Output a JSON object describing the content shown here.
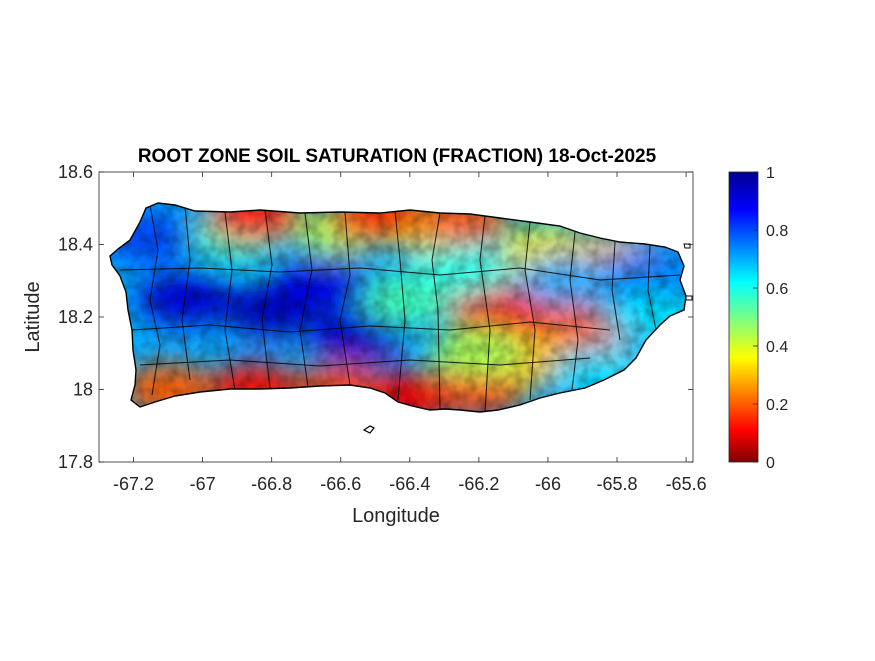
{
  "figure": {
    "title": "ROOT ZONE SOIL SATURATION (FRACTION) 18-Oct-2025",
    "xlabel": "Longitude",
    "ylabel": "Latitude"
  },
  "map": {
    "region": "Puerto Rico",
    "variable": "root zone soil saturation fraction",
    "xlim": [
      -67.3,
      -65.58
    ],
    "ylim": [
      17.8,
      18.6
    ],
    "xticks": [
      "-67.2",
      "-67",
      "-66.8",
      "-66.6",
      "-66.4",
      "-66.2",
      "-66",
      "-65.8",
      "-65.6"
    ],
    "yticks": [
      "18.6",
      "18.4",
      "18.2",
      "18",
      "17.8"
    ],
    "colormap": "jet",
    "clim": [
      0,
      1
    ],
    "colorbar_ticks": [
      "1",
      "0.8",
      "0.6",
      "0.4",
      "0.2",
      "0"
    ],
    "colors": {
      "low": "#800000",
      "mid": "#ffff00",
      "high": "#00008f",
      "outline": "#000000"
    },
    "fields": [
      {
        "lon": -67.05,
        "lat": 18.25,
        "value": 0.92
      },
      {
        "lon": -66.8,
        "lat": 18.22,
        "value": 0.95
      },
      {
        "lon": -66.65,
        "lat": 18.3,
        "value": 0.9
      },
      {
        "lon": -66.55,
        "lat": 18.15,
        "value": 0.93
      },
      {
        "lon": -67.15,
        "lat": 18.42,
        "value": 0.8
      },
      {
        "lon": -66.9,
        "lat": 18.43,
        "value": 0.55
      },
      {
        "lon": -66.6,
        "lat": 18.44,
        "value": 0.45
      },
      {
        "lon": -66.35,
        "lat": 18.45,
        "value": 0.35
      },
      {
        "lon": -66.85,
        "lat": 18.48,
        "value": 0.12
      },
      {
        "lon": -66.5,
        "lat": 18.48,
        "value": 0.15
      },
      {
        "lon": -66.25,
        "lat": 18.47,
        "value": 0.2
      },
      {
        "lon": -67.1,
        "lat": 18.0,
        "value": 0.2
      },
      {
        "lon": -66.85,
        "lat": 18.0,
        "value": 0.12
      },
      {
        "lon": -66.6,
        "lat": 18.0,
        "value": 0.18
      },
      {
        "lon": -66.4,
        "lat": 17.98,
        "value": 0.1
      },
      {
        "lon": -66.2,
        "lat": 18.0,
        "value": 0.15
      },
      {
        "lon": -66.4,
        "lat": 18.25,
        "value": 0.55
      },
      {
        "lon": -66.15,
        "lat": 18.22,
        "value": 0.1
      },
      {
        "lon": -66.0,
        "lat": 18.2,
        "value": 0.12
      },
      {
        "lon": -65.9,
        "lat": 18.15,
        "value": 0.2
      },
      {
        "lon": -66.05,
        "lat": 18.08,
        "value": 0.3
      },
      {
        "lon": -66.0,
        "lat": 18.38,
        "value": 0.35
      },
      {
        "lon": -65.82,
        "lat": 18.36,
        "value": 0.3
      },
      {
        "lon": -65.72,
        "lat": 18.32,
        "value": 0.75
      },
      {
        "lon": -65.7,
        "lat": 18.2,
        "value": 0.65
      },
      {
        "lon": -65.85,
        "lat": 18.05,
        "value": 0.65
      },
      {
        "lon": -66.25,
        "lat": 18.33,
        "value": 0.6
      },
      {
        "lon": -66.2,
        "lat": 18.1,
        "value": 0.45
      },
      {
        "lon": -65.95,
        "lat": 18.3,
        "value": 0.7
      }
    ]
  }
}
